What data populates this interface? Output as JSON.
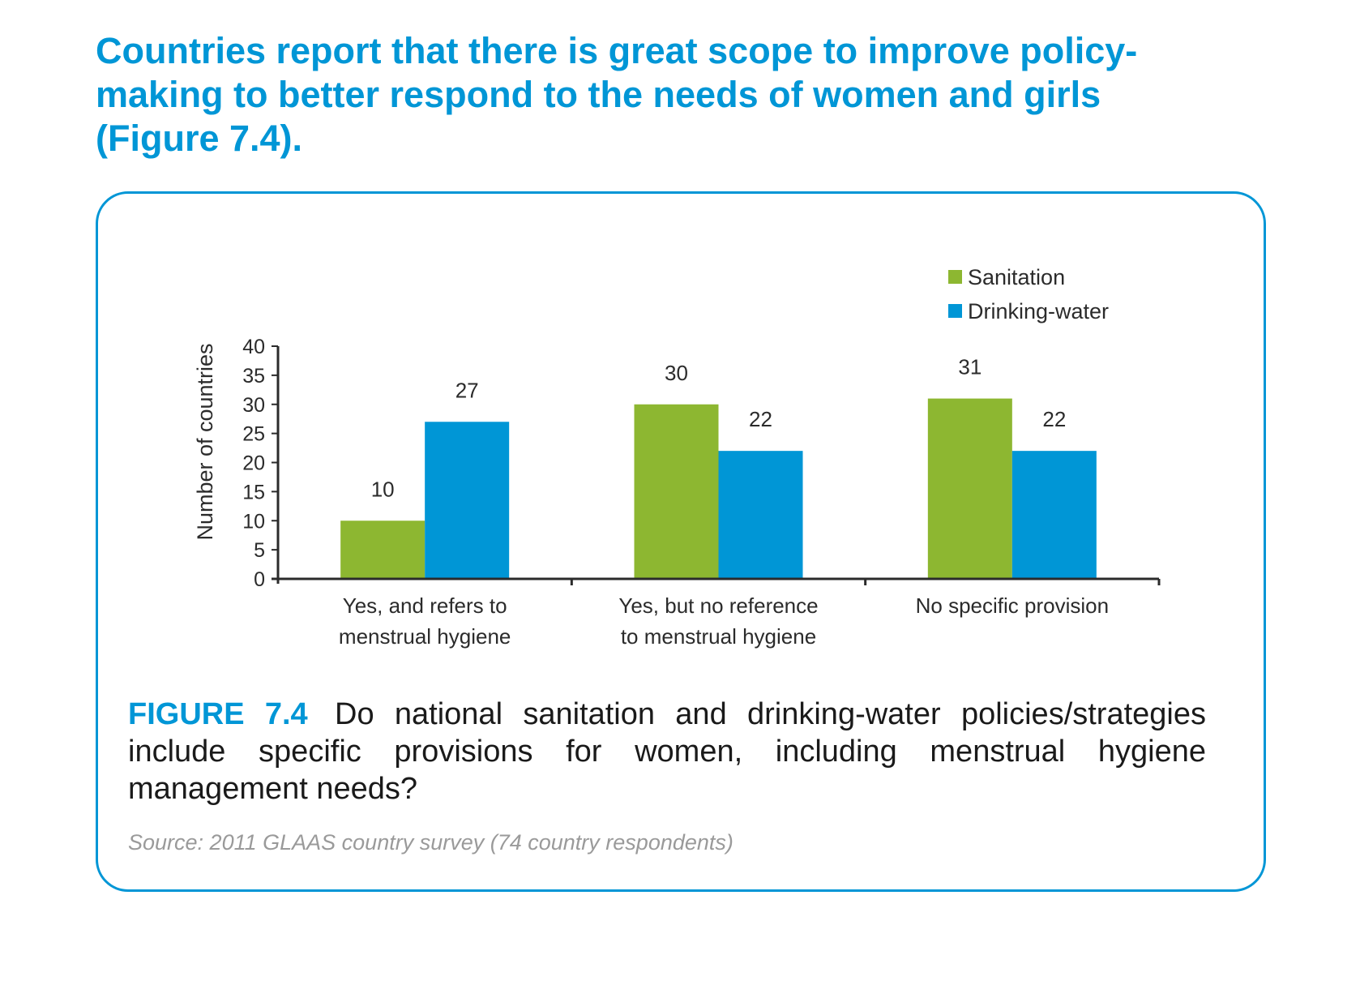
{
  "headline": {
    "line1": "Countries report that there is great scope to improve policy-",
    "line2": "making to better respond to the needs of women and girls",
    "line3": "(Figure 7.4)."
  },
  "figure": {
    "label": "FIGURE 7.4",
    "caption": "Do national sanitation and drinking-water policies/strategies include specific provisions for women, including menstrual hygiene management needs?",
    "source": "Source: 2011 GLAAS country survey (74 country respondents)"
  },
  "colors": {
    "accent": "#0096d6",
    "sanitation": "#8db731",
    "drinking_water": "#0096d6"
  },
  "chart_data": {
    "type": "bar",
    "ylabel": "Number of countries",
    "xlabel": "",
    "ylim": [
      0,
      40
    ],
    "yticks": [
      0,
      5,
      10,
      15,
      20,
      25,
      30,
      35,
      40
    ],
    "categories": [
      [
        "Yes, and refers to",
        "menstrual hygiene"
      ],
      [
        "Yes, but no reference",
        "to menstrual hygiene"
      ],
      [
        "No specific provision"
      ]
    ],
    "series": [
      {
        "name": "Sanitation",
        "values": [
          10,
          30,
          31
        ],
        "color": "#8db731"
      },
      {
        "name": "Drinking-water",
        "values": [
          27,
          22,
          22
        ],
        "color": "#0096d6"
      }
    ],
    "data_labels": true,
    "legend_position": "top-right",
    "grid": false
  }
}
